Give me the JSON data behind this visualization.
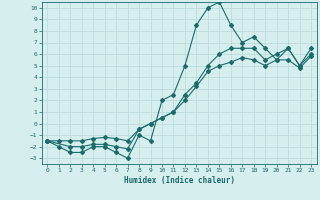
{
  "xlabel": "Humidex (Indice chaleur)",
  "xlim": [
    -0.5,
    23.5
  ],
  "ylim": [
    -3.5,
    10.5
  ],
  "xticks": [
    0,
    1,
    2,
    3,
    4,
    5,
    6,
    7,
    8,
    9,
    10,
    11,
    12,
    13,
    14,
    15,
    16,
    17,
    18,
    19,
    20,
    21,
    22,
    23
  ],
  "yticks": [
    -3,
    -2,
    -1,
    0,
    1,
    2,
    3,
    4,
    5,
    6,
    7,
    8,
    9,
    10
  ],
  "bg_color": "#d6eeee",
  "line_color": "#1a6b6b",
  "grid_color": "#b8d8d8",
  "line1_x": [
    0,
    1,
    2,
    3,
    4,
    5,
    6,
    7,
    8,
    9,
    10,
    11,
    12,
    13,
    14,
    15,
    16,
    17,
    18,
    19,
    20,
    21,
    22,
    23
  ],
  "line1_y": [
    -1.5,
    -2.0,
    -2.5,
    -2.5,
    -2.0,
    -2.0,
    -2.5,
    -3.0,
    -1.0,
    -1.5,
    2.0,
    2.5,
    5.0,
    8.5,
    10.0,
    10.5,
    8.5,
    7.0,
    7.5,
    6.5,
    5.5,
    6.5,
    5.0,
    6.0
  ],
  "line2_x": [
    0,
    2,
    3,
    4,
    5,
    6,
    7,
    8,
    9,
    10,
    11,
    12,
    13,
    14,
    15,
    16,
    17,
    18,
    19,
    20,
    21,
    22,
    23
  ],
  "line2_y": [
    -1.5,
    -2.0,
    -2.0,
    -1.8,
    -1.8,
    -2.0,
    -2.2,
    -0.5,
    0.0,
    0.5,
    1.0,
    2.5,
    3.5,
    5.0,
    6.0,
    6.5,
    6.5,
    6.5,
    5.5,
    6.0,
    6.5,
    5.0,
    6.5
  ],
  "line3_x": [
    0,
    1,
    2,
    3,
    4,
    5,
    6,
    7,
    8,
    9,
    10,
    11,
    12,
    13,
    14,
    15,
    16,
    17,
    18,
    19,
    20,
    21,
    22,
    23
  ],
  "line3_y": [
    -1.5,
    -1.5,
    -1.5,
    -1.5,
    -1.3,
    -1.2,
    -1.3,
    -1.5,
    -0.5,
    0.0,
    0.5,
    1.0,
    2.0,
    3.2,
    4.5,
    5.0,
    5.3,
    5.7,
    5.5,
    5.0,
    5.5,
    5.5,
    4.8,
    5.8
  ]
}
